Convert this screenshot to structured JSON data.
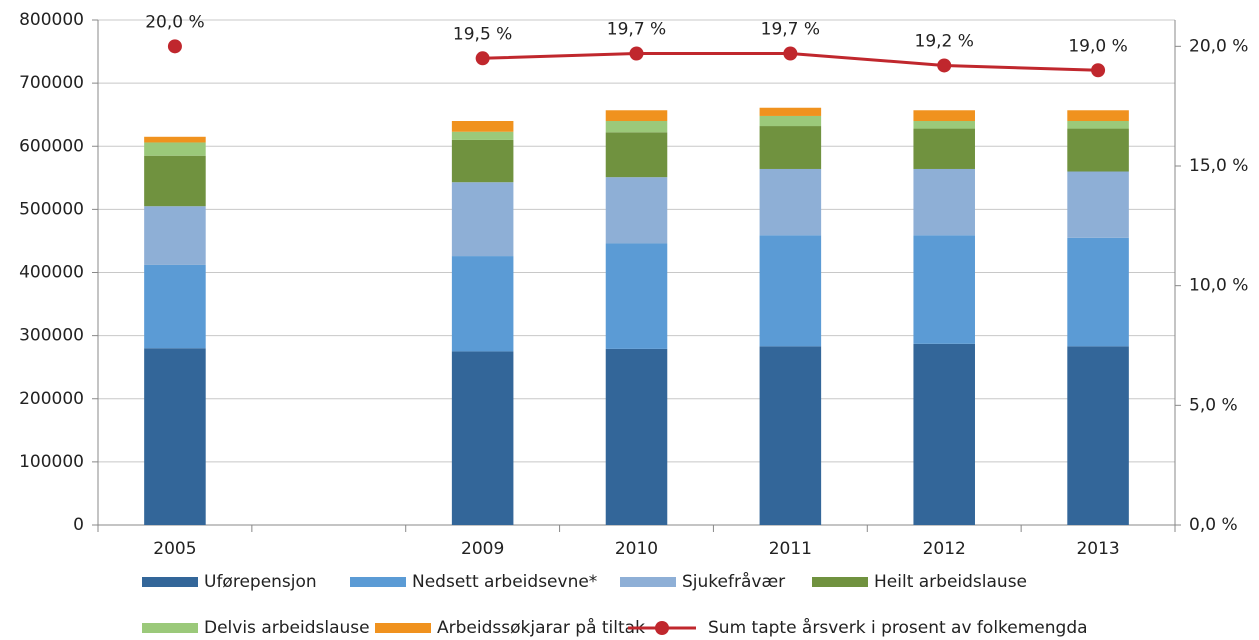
{
  "chart_data": {
    "type": "bar",
    "stacked": true,
    "categories": [
      "2005",
      null,
      "2009",
      "2010",
      "2011",
      "2012",
      "2013"
    ],
    "series": [
      {
        "name": "Uførepensjon",
        "color": "#336699",
        "values": [
          280000,
          null,
          275000,
          279000,
          283000,
          287000,
          283000
        ]
      },
      {
        "name": "Nedsett arbeidsevne*",
        "color": "#5b9bd5",
        "values": [
          132000,
          null,
          151000,
          167000,
          176000,
          172000,
          172000
        ]
      },
      {
        "name": "Sjukefråvær",
        "color": "#8eafd6",
        "values": [
          93000,
          null,
          117000,
          105000,
          105000,
          105000,
          105000
        ]
      },
      {
        "name": "Heilt arbeidslause",
        "color": "#70923f",
        "values": [
          80000,
          null,
          67000,
          71000,
          68000,
          64000,
          68000
        ]
      },
      {
        "name": "Delvis arbeidslause",
        "color": "#9bc97a",
        "values": [
          21000,
          null,
          13000,
          18000,
          16000,
          12000,
          12000
        ]
      },
      {
        "name": "Arbeidssøkjarar på tiltak",
        "color": "#f0921e",
        "values": [
          9000,
          null,
          17000,
          17000,
          13000,
          17000,
          17000
        ]
      },
      {
        "name": "Sum tapte årsverk i prosent av folkemengda",
        "color": "#c0272d",
        "type": "line",
        "axis": "y2",
        "values": [
          20.0,
          null,
          19.5,
          19.7,
          19.7,
          19.2,
          19.0
        ],
        "value_labels": [
          "20,0 %",
          null,
          "19,5 %",
          "19,7 %",
          "19,7 %",
          "19,2 %",
          "19,0 %"
        ]
      }
    ],
    "ylim": [
      0,
      800000
    ],
    "yticks": [
      0,
      100000,
      200000,
      300000,
      400000,
      500000,
      600000,
      700000,
      800000
    ],
    "y2lim": [
      0,
      21.1
    ],
    "y2ticks": [
      {
        "value": 0,
        "label": "0,0 %"
      },
      {
        "value": 5,
        "label": "5,0 %"
      },
      {
        "value": 10,
        "label": "10,0 %"
      },
      {
        "value": 15,
        "label": "15,0 %"
      },
      {
        "value": 20,
        "label": "20,0 %"
      }
    ],
    "grid": true,
    "legend": "bottom"
  }
}
